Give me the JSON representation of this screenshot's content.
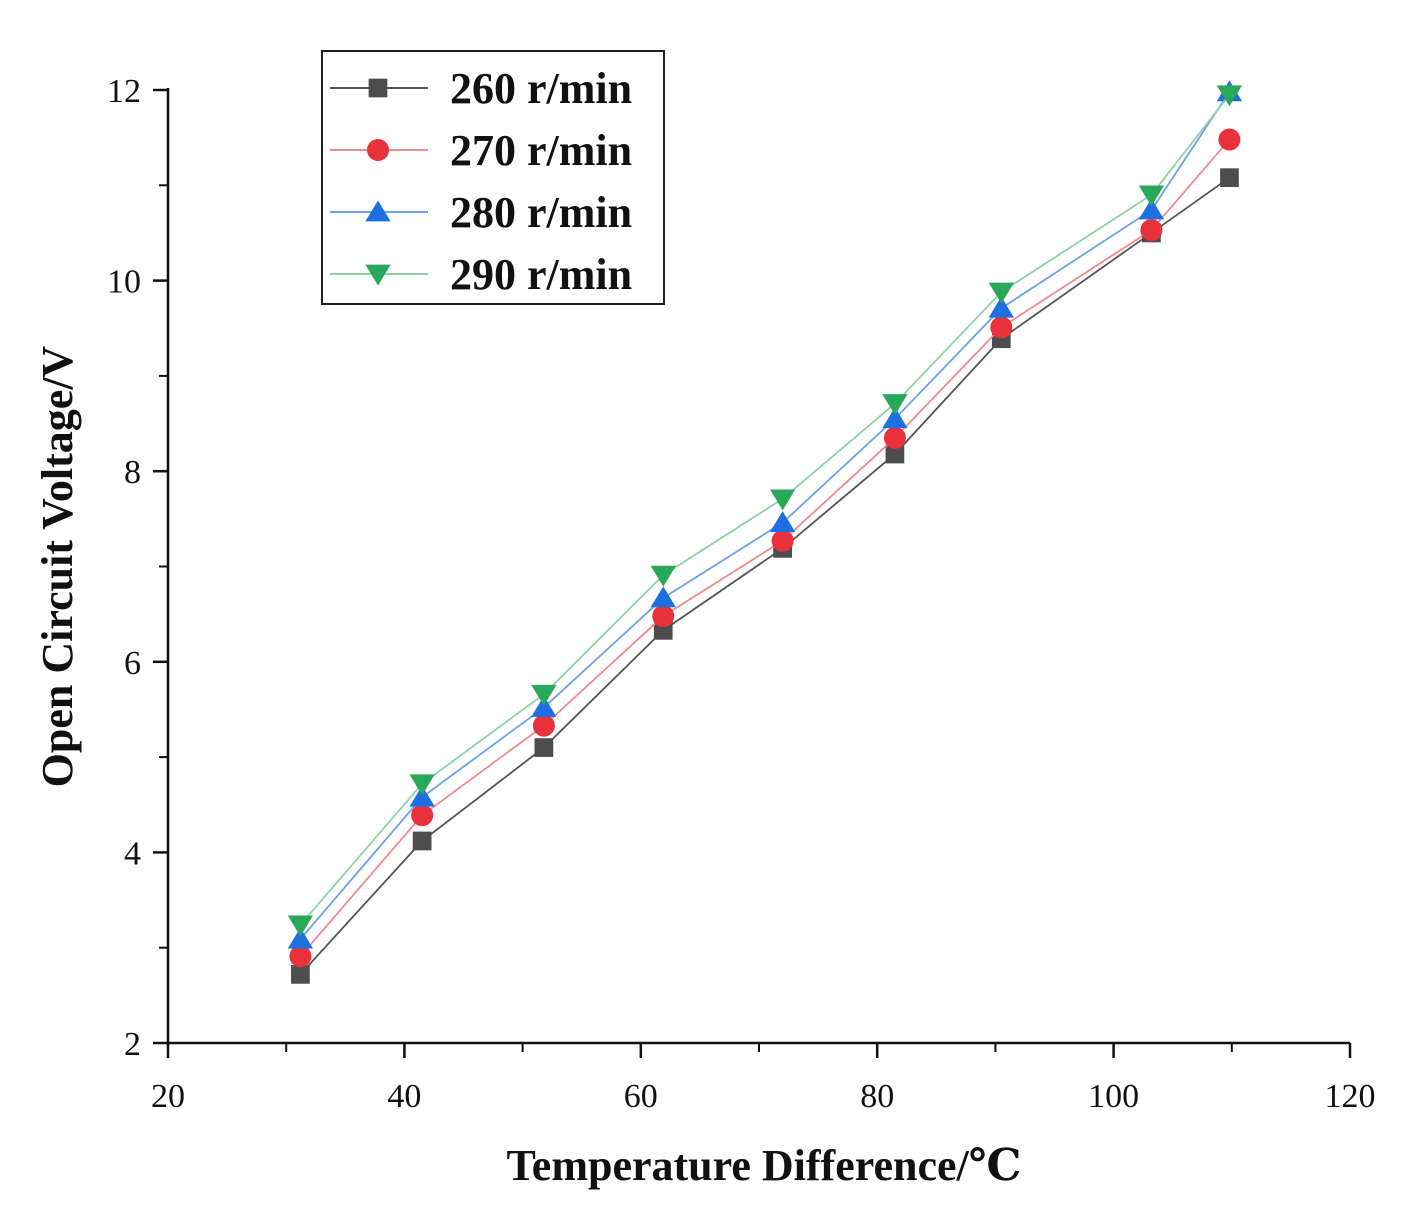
{
  "chart_data": {
    "type": "line",
    "title": "",
    "xlabel": "Temperature Difference/℃",
    "ylabel": "Open Circuit Voltage/V",
    "xlim": [
      20,
      120
    ],
    "ylim": [
      2,
      12
    ],
    "x_ticks": [
      20,
      40,
      60,
      80,
      100,
      120
    ],
    "y_ticks": [
      2,
      4,
      6,
      8,
      10,
      12
    ],
    "x_tick_labels": [
      "20",
      "40",
      "60",
      "80",
      "100",
      "120"
    ],
    "y_tick_labels": [
      "2",
      "4",
      "6",
      "8",
      "10",
      "12"
    ],
    "grid": false,
    "legend_position": "top-left",
    "x": [
      31.2,
      41.5,
      51.8,
      61.9,
      72.0,
      81.5,
      90.5,
      103.2,
      109.8
    ],
    "series": [
      {
        "name": "260 r/min",
        "marker": "square",
        "color": "#4d4d4d",
        "line_color": "#555555",
        "values": [
          2.72,
          4.12,
          5.1,
          6.33,
          7.19,
          8.18,
          9.39,
          10.5,
          11.08
        ]
      },
      {
        "name": "270 r/min",
        "marker": "circle",
        "color": "#e8313b",
        "line_color": "#f08a8e",
        "values": [
          2.91,
          4.39,
          5.33,
          6.48,
          7.27,
          8.35,
          9.51,
          10.53,
          11.48
        ]
      },
      {
        "name": "280 r/min",
        "marker": "triangle-up",
        "color": "#1e6fe0",
        "line_color": "#6fa0ea",
        "values": [
          3.09,
          4.58,
          5.52,
          6.67,
          7.46,
          8.55,
          9.71,
          10.74,
          11.98
        ]
      },
      {
        "name": "290 r/min",
        "marker": "triangle-down",
        "color": "#2aa85a",
        "line_color": "#8fd2a6",
        "values": [
          3.24,
          4.72,
          5.66,
          6.91,
          7.71,
          8.71,
          9.88,
          10.9,
          11.95
        ]
      }
    ]
  }
}
